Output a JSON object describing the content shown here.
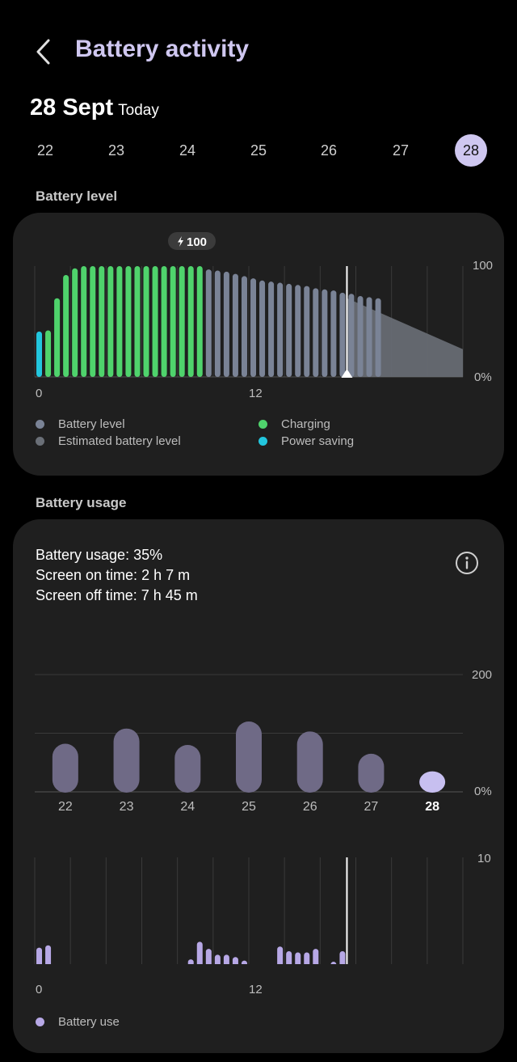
{
  "header": {
    "title": "Battery activity"
  },
  "date": {
    "main": "28 Sept",
    "sub": "Today"
  },
  "days": [
    "22",
    "23",
    "24",
    "25",
    "26",
    "27",
    "28"
  ],
  "selected_day": "28",
  "battery_level": {
    "section_title": "Battery level",
    "badge": "100",
    "axis": {
      "y_max": "100",
      "y_min": "0%",
      "x_start": "0",
      "x_mid": "12"
    },
    "legend": {
      "battery_level": "Battery level",
      "estimated": "Estimated battery level",
      "charging": "Charging",
      "power_saving": "Power saving"
    },
    "colors": {
      "battery": "#7a8396",
      "charging": "#4fd36c",
      "power_saving": "#22c6de",
      "estimated": "#6a6f77",
      "grid": "#3a3a3a"
    },
    "chart_data": {
      "type": "bar",
      "x_unit": "hour",
      "ylim": [
        0,
        100
      ],
      "xlim": [
        0,
        24
      ],
      "samples_per_hour": 2,
      "series": [
        {
          "name": "Power saving",
          "values": [
            41
          ]
        },
        {
          "name": "Charging",
          "values": [
            42,
            71,
            92,
            98,
            100,
            100,
            100,
            100,
            100,
            100,
            100,
            100,
            100,
            100,
            100,
            100,
            100,
            100
          ]
        },
        {
          "name": "Battery level",
          "values": [
            97,
            96,
            95,
            93,
            91,
            89,
            87,
            86,
            85,
            84,
            83,
            82,
            80,
            79,
            78,
            76,
            75,
            73,
            72,
            71
          ]
        }
      ],
      "estimated": {
        "from_hour": 17.5,
        "to_hour": 24,
        "from_value": 71,
        "to_value": 25
      },
      "now_hour": 17.5
    }
  },
  "battery_usage": {
    "section_title": "Battery usage",
    "stats": {
      "usage": "Battery usage: 35%",
      "screen_on": "Screen on time: 2 h 7 m",
      "screen_off": "Screen off time: 7 h 45 m"
    },
    "weekly_axis": {
      "y_max": "200",
      "y_min": "0%"
    },
    "hourly_axis": {
      "y_max": "10",
      "y_min": "0%",
      "x_start": "0",
      "x_mid": "12"
    },
    "legend": {
      "battery_use": "Battery use"
    },
    "colors": {
      "bar": "#6f6a86",
      "selected": "#c7bff0",
      "hourly": "#b7a8e6"
    },
    "weekly_chart_data": {
      "type": "bar",
      "categories": [
        "22",
        "23",
        "24",
        "25",
        "26",
        "27",
        "28"
      ],
      "values": [
        82,
        108,
        80,
        120,
        103,
        65,
        35
      ],
      "ylim": [
        0,
        200
      ]
    },
    "hourly_chart_data": {
      "type": "bar",
      "x_unit": "hour",
      "ylim": [
        0,
        10
      ],
      "values": [
        {
          "hour": 0.25,
          "v": 2.3
        },
        {
          "hour": 0.75,
          "v": 2.5
        },
        {
          "hour": 8.75,
          "v": 1.3
        },
        {
          "hour": 9.25,
          "v": 2.8
        },
        {
          "hour": 9.75,
          "v": 2.2
        },
        {
          "hour": 10.25,
          "v": 1.7
        },
        {
          "hour": 10.75,
          "v": 1.7
        },
        {
          "hour": 11.25,
          "v": 1.5
        },
        {
          "hour": 11.75,
          "v": 1.2
        },
        {
          "hour": 12.25,
          "v": 0.8
        },
        {
          "hour": 12.75,
          "v": 0.8
        },
        {
          "hour": 13.25,
          "v": 0.7
        },
        {
          "hour": 13.75,
          "v": 2.4
        },
        {
          "hour": 14.25,
          "v": 2.0
        },
        {
          "hour": 14.75,
          "v": 1.9
        },
        {
          "hour": 15.25,
          "v": 1.9
        },
        {
          "hour": 15.75,
          "v": 2.2
        },
        {
          "hour": 16.25,
          "v": 0.8
        },
        {
          "hour": 16.75,
          "v": 1.1
        },
        {
          "hour": 17.25,
          "v": 2.0
        }
      ],
      "now_hour": 17.5
    }
  }
}
